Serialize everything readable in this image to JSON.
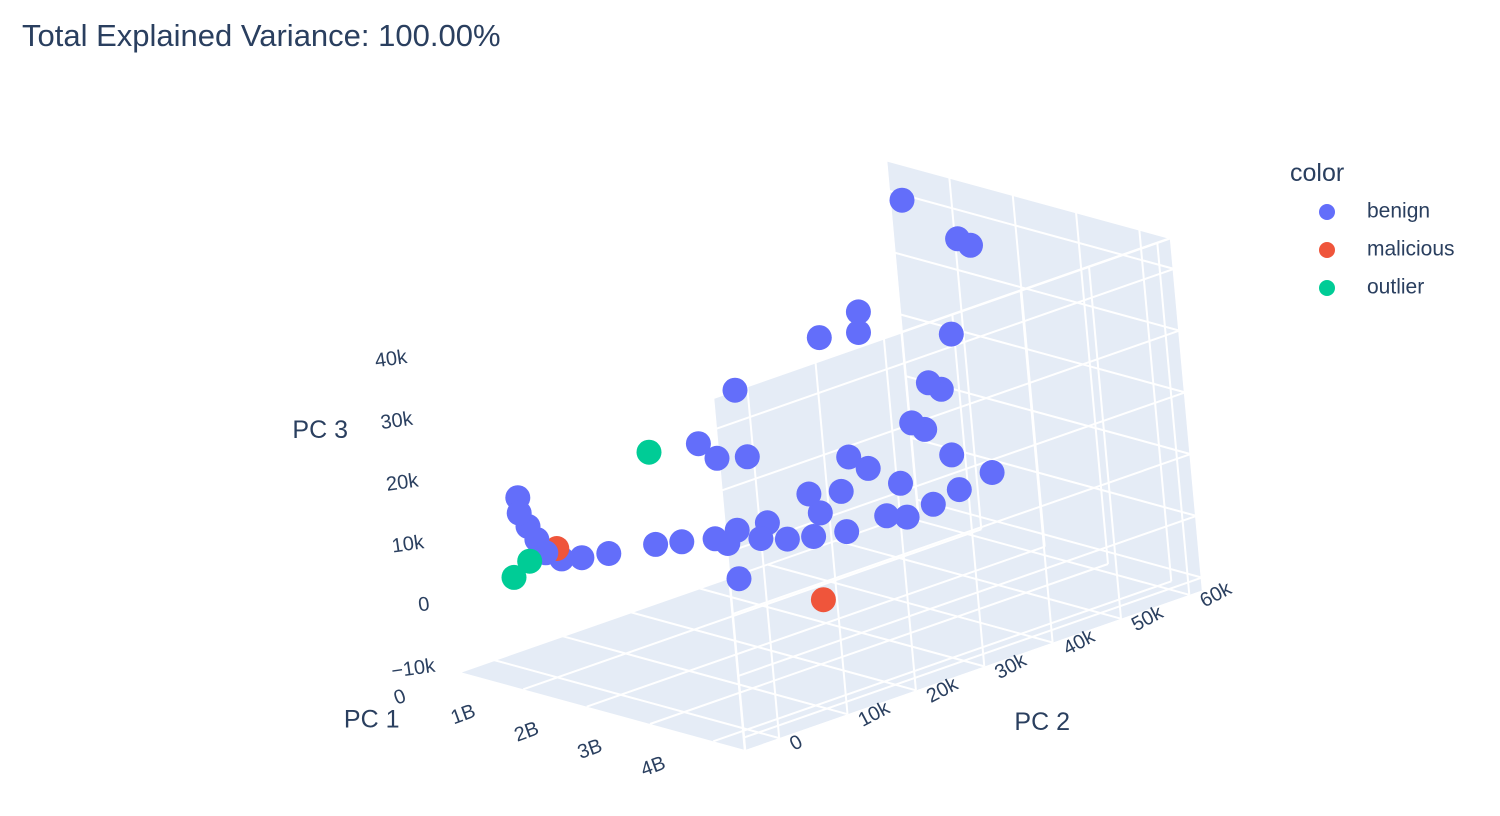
{
  "chart_data": {
    "type": "scatter",
    "title": "Total Explained Variance: 100.00%",
    "axes": {
      "x": {
        "label": "PC 1",
        "range": [
          0,
          4500000000
        ],
        "ticks": [
          0,
          1000000000,
          2000000000,
          3000000000,
          4000000000
        ],
        "tick_labels": [
          "0",
          "1B",
          "2B",
          "3B",
          "4B"
        ]
      },
      "y": {
        "label": "PC 2",
        "range": [
          -5000,
          62000
        ],
        "ticks": [
          0,
          10000,
          20000,
          30000,
          40000,
          50000,
          60000
        ],
        "tick_labels": [
          "0",
          "10k",
          "20k",
          "30k",
          "40k",
          "50k",
          "60k"
        ]
      },
      "z": {
        "label": "PC 3",
        "range": [
          -12000,
          45000
        ],
        "ticks": [
          -10000,
          0,
          10000,
          20000,
          30000,
          40000
        ],
        "tick_labels": [
          "−10k",
          "0",
          "10k",
          "20k",
          "30k",
          "40k"
        ]
      }
    },
    "legend": {
      "title": "color",
      "placement": "right"
    },
    "series": [
      {
        "name": "benign",
        "color": "#636efa",
        "points": [
          [
            1000000000,
            55000,
            44000
          ],
          [
            1500000000,
            58000,
            38000
          ],
          [
            1700000000,
            58000,
            37500
          ],
          [
            700000000,
            50000,
            27000
          ],
          [
            600000000,
            45000,
            24500
          ],
          [
            900000000,
            48000,
            25000
          ],
          [
            1600000000,
            55000,
            24000
          ],
          [
            300000000,
            35000,
            19000
          ],
          [
            1500000000,
            52000,
            17000
          ],
          [
            1700000000,
            52000,
            16500
          ],
          [
            200000000,
            30000,
            12000
          ],
          [
            250000000,
            32000,
            9000
          ],
          [
            400000000,
            35000,
            8500
          ],
          [
            1400000000,
            50000,
            11000
          ],
          [
            1600000000,
            50000,
            10500
          ],
          [
            2000000000,
            50000,
            7500
          ],
          [
            900000000,
            45000,
            6000
          ],
          [
            1200000000,
            45000,
            5000
          ],
          [
            1700000000,
            45000,
            4000
          ],
          [
            50000000,
            5000,
            12500
          ],
          [
            50000000,
            5000,
            10000
          ],
          [
            60000000,
            6000,
            7500
          ],
          [
            70000000,
            7000,
            5000
          ],
          [
            80000000,
            8000,
            2500
          ],
          [
            100000000,
            10000,
            800
          ],
          [
            200000000,
            12000,
            500
          ],
          [
            300000000,
            15000,
            300
          ],
          [
            500000000,
            20000,
            400
          ],
          [
            700000000,
            22000,
            600
          ],
          [
            900000000,
            25000,
            500
          ],
          [
            1100000000,
            25000,
            300
          ],
          [
            1300000000,
            28000,
            500
          ],
          [
            1500000000,
            30000,
            200
          ],
          [
            1700000000,
            32000,
            400
          ],
          [
            1900000000,
            35000,
            600
          ],
          [
            1200000000,
            30000,
            2000
          ],
          [
            1500000000,
            35000,
            2500
          ],
          [
            2000000000,
            40000,
            1500
          ],
          [
            2100000000,
            42000,
            800
          ],
          [
            700000000,
            30000,
            -600
          ],
          [
            1800000000,
            20000,
            -1500
          ],
          [
            1000000000,
            38000,
            3000
          ],
          [
            1300000000,
            40000,
            3500
          ],
          [
            2200000000,
            45000,
            2000
          ],
          [
            2300000000,
            48000,
            3500
          ],
          [
            2400000000,
            52000,
            5000
          ]
        ]
      },
      {
        "name": "malicious",
        "color": "#ef553b",
        "points": [
          [
            4050000000,
            12000,
            4500
          ],
          [
            150000000,
            9000,
            3000
          ]
        ]
      },
      {
        "name": "outlier",
        "color": "#00cc96",
        "points": [
          [
            100000000,
            3000,
            500
          ],
          [
            300000000,
            22000,
            14000
          ],
          [
            150000000,
            5000,
            2500
          ]
        ]
      }
    ]
  }
}
